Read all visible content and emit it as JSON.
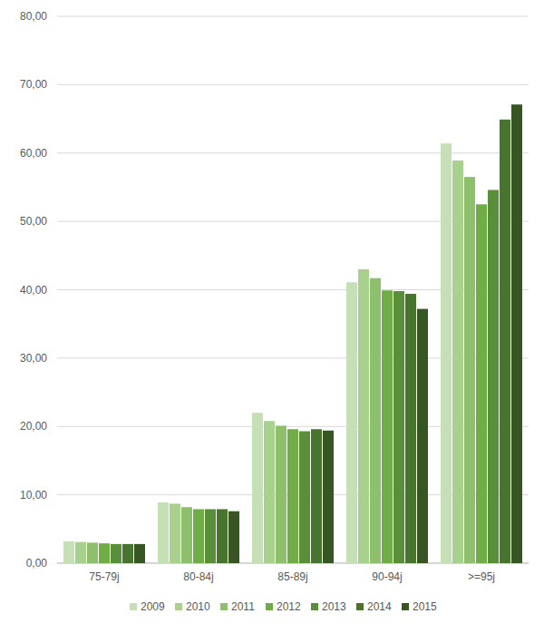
{
  "chart_data": {
    "type": "bar",
    "categories": [
      "75-79j",
      "80-84j",
      "85-89j",
      "90-94j",
      ">=95j"
    ],
    "series": [
      {
        "name": "2009",
        "color": "#c5e0b4",
        "values": [
          3.2,
          8.9,
          22.0,
          41.1,
          61.4
        ]
      },
      {
        "name": "2010",
        "color": "#a9d18e",
        "values": [
          3.1,
          8.7,
          20.8,
          43.0,
          58.9
        ]
      },
      {
        "name": "2011",
        "color": "#8dbf6c",
        "values": [
          3.0,
          8.2,
          20.1,
          41.7,
          56.5
        ]
      },
      {
        "name": "2012",
        "color": "#70ad47",
        "values": [
          2.9,
          7.9,
          19.6,
          39.9,
          52.5
        ]
      },
      {
        "name": "2013",
        "color": "#5a8f3a",
        "values": [
          2.8,
          7.9,
          19.3,
          39.8,
          54.6
        ]
      },
      {
        "name": "2014",
        "color": "#47752d",
        "values": [
          2.8,
          7.9,
          19.6,
          39.4,
          64.9
        ]
      },
      {
        "name": "2015",
        "color": "#375623",
        "values": [
          2.8,
          7.6,
          19.4,
          37.2,
          67.1
        ]
      }
    ],
    "ylim": [
      0,
      80
    ],
    "yticks": [
      {
        "value": 0,
        "label": "0,00"
      },
      {
        "value": 10,
        "label": "10,00"
      },
      {
        "value": 20,
        "label": "20,00"
      },
      {
        "value": 30,
        "label": "30,00"
      },
      {
        "value": 40,
        "label": "40,00"
      },
      {
        "value": 50,
        "label": "50,00"
      },
      {
        "value": 60,
        "label": "60,00"
      },
      {
        "value": 70,
        "label": "70,00"
      },
      {
        "value": 80,
        "label": "80,00"
      }
    ],
    "grid": true,
    "legend": "bottom"
  }
}
